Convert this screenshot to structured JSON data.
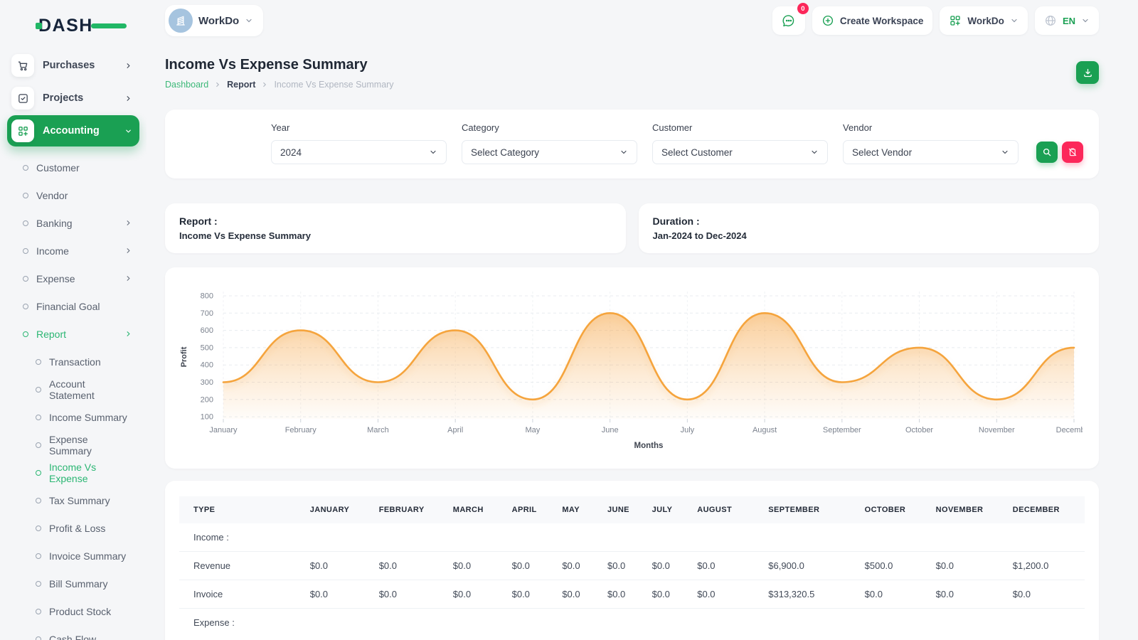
{
  "brand": {
    "logo_text": "DASH",
    "accent": "#1aa053",
    "danger": "#fc275a"
  },
  "topbar": {
    "workspace_switcher_label": "WorkDo",
    "messages_badge": "0",
    "create_workspace_label": "Create Workspace",
    "workspace_menu_label": "WorkDo",
    "language": "EN"
  },
  "page": {
    "title": "Income Vs Expense Summary",
    "breadcrumb": [
      "Dashboard",
      "Report",
      "Income Vs Expense Summary"
    ]
  },
  "sidebar": {
    "main_items": [
      {
        "label": "Purchases",
        "icon": "cart-icon",
        "chevron": "right",
        "active": false
      },
      {
        "label": "Projects",
        "icon": "check-square-icon",
        "chevron": "right",
        "active": false
      },
      {
        "label": "Accounting",
        "icon": "grid-plus-icon",
        "chevron": "down",
        "active": true
      }
    ],
    "submenu": [
      {
        "label": "Customer",
        "chevron": false,
        "active": false
      },
      {
        "label": "Vendor",
        "chevron": false,
        "active": false
      },
      {
        "label": "Banking",
        "chevron": true,
        "active": false
      },
      {
        "label": "Income",
        "chevron": true,
        "active": false
      },
      {
        "label": "Expense",
        "chevron": true,
        "active": false
      },
      {
        "label": "Financial Goal",
        "chevron": false,
        "active": false
      },
      {
        "label": "Report",
        "chevron": true,
        "active": true
      }
    ],
    "report_items": [
      {
        "label": "Transaction",
        "active": false
      },
      {
        "label": "Account Statement",
        "active": false
      },
      {
        "label": "Income Summary",
        "active": false
      },
      {
        "label": "Expense Summary",
        "active": false
      },
      {
        "label": "Income Vs Expense",
        "active": true
      },
      {
        "label": "Tax Summary",
        "active": false
      },
      {
        "label": "Profit & Loss",
        "active": false
      },
      {
        "label": "Invoice Summary",
        "active": false
      },
      {
        "label": "Bill Summary",
        "active": false
      },
      {
        "label": "Product Stock",
        "active": false
      },
      {
        "label": "Cash Flow",
        "active": false
      }
    ]
  },
  "filters": {
    "fields": [
      {
        "label": "Year",
        "value": "2024"
      },
      {
        "label": "Category",
        "value": "Select Category"
      },
      {
        "label": "Customer",
        "value": "Select Customer"
      },
      {
        "label": "Vendor",
        "value": "Select Vendor"
      }
    ]
  },
  "summary_cards": [
    {
      "title": "Report :",
      "value": "Income Vs Expense Summary"
    },
    {
      "title": "Duration :",
      "value": "Jan-2024 to Dec-2024"
    }
  ],
  "chart_data": {
    "type": "area",
    "x": [
      "January",
      "February",
      "March",
      "April",
      "May",
      "June",
      "July",
      "August",
      "September",
      "October",
      "November",
      "December"
    ],
    "series": [
      {
        "name": "Profit",
        "values": [
          300,
          600,
          300,
          600,
          200,
          700,
          200,
          700,
          300,
          500,
          200,
          500
        ]
      }
    ],
    "xlabel": "Months",
    "ylabel": "Profit",
    "ylim": [
      100,
      800
    ],
    "yticks": [
      100,
      200,
      300,
      400,
      500,
      600,
      700,
      800
    ],
    "grid": "dashed-horizontal",
    "legend_position": "none",
    "line_color": "#f5a43c"
  },
  "table": {
    "columns": [
      "TYPE",
      "JANUARY",
      "FEBRUARY",
      "MARCH",
      "APRIL",
      "MAY",
      "JUNE",
      "JULY",
      "AUGUST",
      "SEPTEMBER",
      "OCTOBER",
      "NOVEMBER",
      "DECEMBER"
    ],
    "rows": [
      {
        "kind": "section",
        "label": "Income :"
      },
      {
        "kind": "data",
        "label": "Revenue",
        "values": [
          "$0.0",
          "$0.0",
          "$0.0",
          "$0.0",
          "$0.0",
          "$0.0",
          "$0.0",
          "$0.0",
          "$6,900.0",
          "$500.0",
          "$0.0",
          "$1,200.0"
        ]
      },
      {
        "kind": "data",
        "label": "Invoice",
        "values": [
          "$0.0",
          "$0.0",
          "$0.0",
          "$0.0",
          "$0.0",
          "$0.0",
          "$0.0",
          "$0.0",
          "$313,320.5",
          "$0.0",
          "$0.0",
          "$0.0"
        ]
      },
      {
        "kind": "section",
        "label": "Expense :"
      }
    ]
  }
}
